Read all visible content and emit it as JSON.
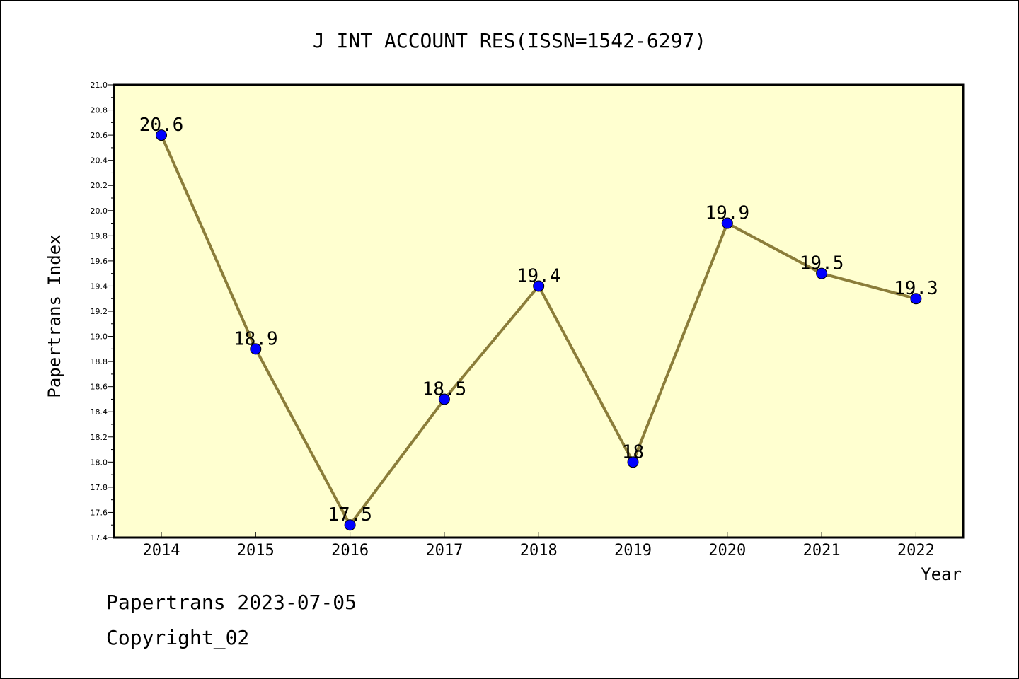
{
  "chart_data": {
    "type": "line",
    "title": "J INT ACCOUNT RES(ISSN=1542-6297)",
    "xlabel": "Year",
    "ylabel": "Papertrans Index",
    "categories": [
      "2014",
      "2015",
      "2016",
      "2017",
      "2018",
      "2019",
      "2020",
      "2021",
      "2022"
    ],
    "values": [
      20.6,
      18.9,
      17.5,
      18.5,
      19.4,
      18,
      19.9,
      19.5,
      19.3
    ],
    "data_labels": [
      "20.6",
      "18.9",
      "17.5",
      "18.5",
      "19.4",
      "18",
      "19.9",
      "19.5",
      "19.3"
    ],
    "ylim": [
      17.4,
      21.0
    ],
    "yticks": [
      "17.4",
      "17.6",
      "17.8",
      "18.0",
      "18.2",
      "18.4",
      "18.6",
      "18.8",
      "19.0",
      "19.2",
      "19.4",
      "19.6",
      "19.8",
      "20.0",
      "20.2",
      "20.4",
      "20.6",
      "20.8",
      "21.0"
    ],
    "grid": false,
    "colors": {
      "plot_background": "#ffffd0",
      "line": "#8b7d3a",
      "marker": "#0000ff"
    }
  },
  "footer": {
    "date_text": "Papertrans 2023-07-05",
    "copyright_text": "Copyright_02"
  }
}
